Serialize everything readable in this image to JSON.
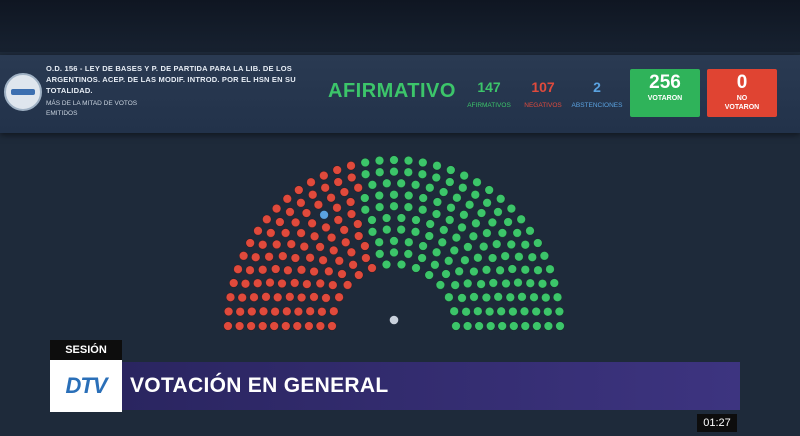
{
  "vote": {
    "bill_title": "O.D. 156 - LEY DE BASES Y P. DE PARTIDA PARA LA LIB. DE LOS ARGENTINOS. ACEP. DE LAS MODIF. INTROD. POR EL HSN EN SU TOTALIDAD.",
    "majority_type": "MÁS DE LA MITAD DE VOTOS EMITIDOS",
    "result": "AFIRMATIVO",
    "counts": {
      "affirmative": {
        "value": "147",
        "label": "AFIRMATIVOS"
      },
      "negative": {
        "value": "107",
        "label": "NEGATIVOS"
      },
      "abstentions": {
        "value": "2",
        "label": "ABSTENCIONES"
      }
    },
    "voted": {
      "value": "256",
      "label": "VOTARON"
    },
    "not_voted": {
      "value": "0",
      "label_line1": "NO",
      "label_line2": "VOTARON"
    }
  },
  "colors": {
    "affirmative": "#3cc56a",
    "negative": "#e04a3c",
    "abstention": "#5aa2e0",
    "lower_third": "#3d3480"
  },
  "broadcast": {
    "section_label": "SESIÓN",
    "channel_logo": "DTV",
    "headline": "VOTACIÓN EN GENERAL",
    "clock": "01:27"
  }
}
